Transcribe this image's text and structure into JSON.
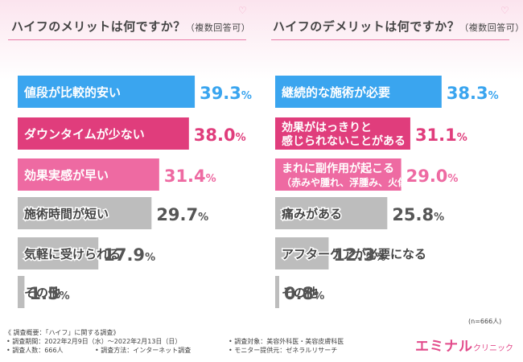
{
  "left_title": "ハイフのメリットは何ですか？",
  "left_title_note": "（複数回答可）",
  "right_title": "ハイフのデメリットは何ですか？",
  "right_title_note": "（複数回答可）",
  "n_label": "(n=666人)",
  "footer": {
    "heading": "《 調査概要：「ハイフ」に関する調査》",
    "period": "• 調査期間：2022年2月9日（水）〜2022年2月13日（日）",
    "target": "• 調査対象：美容外科医・美容皮膚科医",
    "count": "• 調査人数：666人",
    "method": "• 調査方法：インターネット調査",
    "provider": "• モニター提供元：ゼネラルリサーチ"
  },
  "logo": {
    "main": "エミナル",
    "sub": "クリニック"
  },
  "colors": {
    "blue": "#3aa5ef",
    "magenta": "#e03d7c",
    "pink": "#ee6aa2",
    "gray": "#bdbdbd"
  },
  "chart_data": [
    {
      "type": "bar",
      "orientation": "horizontal",
      "title": "ハイフのメリットは何ですか？（複数回答可）",
      "categories": [
        "値段が比較的安い",
        "ダウンタイムが少ない",
        "効果実感が早い",
        "施術時間が短い",
        "気軽に受けられる",
        "その他"
      ],
      "values": [
        39.3,
        38.0,
        31.4,
        29.7,
        17.9,
        1.5
      ],
      "labels": [
        "39.3%",
        "38.0%",
        "31.4%",
        "29.7%",
        "17.9%",
        "1.5%"
      ],
      "colors": [
        "#3aa5ef",
        "#e03d7c",
        "#ee6aa2",
        "#bdbdbd",
        "#bdbdbd",
        "#bdbdbd"
      ],
      "grid": false
    },
    {
      "type": "bar",
      "orientation": "horizontal",
      "title": "ハイフのデメリットは何ですか？（複数回答可）",
      "categories": [
        "継続的な施術が必要",
        "効果がはっきりと\n感じられないことがある",
        "まれに副作用が起こる\n（赤みや腫れ、浮腫み、火傷など）",
        "痛みがある",
        "アフターケアが必要になる",
        "その他"
      ],
      "values": [
        38.3,
        31.1,
        29.0,
        25.8,
        12.3,
        0.8
      ],
      "labels": [
        "38.3%",
        "31.1%",
        "29.0%",
        "25.8%",
        "12.3%",
        "0.8%"
      ],
      "colors": [
        "#3aa5ef",
        "#e03d7c",
        "#ee6aa2",
        "#bdbdbd",
        "#bdbdbd",
        "#bdbdbd"
      ],
      "grid": false
    }
  ]
}
